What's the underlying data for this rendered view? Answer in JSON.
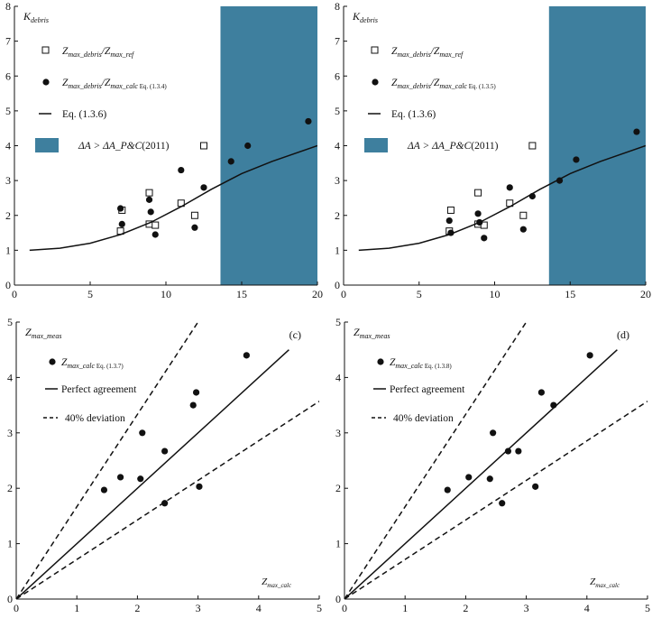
{
  "colors": {
    "region": "#3e7f9e",
    "ink": "#111111"
  },
  "chart_data": [
    {
      "id": "a",
      "type": "scatter",
      "title": "",
      "ylabel": "K",
      "ylabel_sub": "debris",
      "xlabel": "",
      "xlim": [
        0,
        20
      ],
      "ylim": [
        0,
        8
      ],
      "xticks": [
        0,
        5,
        10,
        15,
        20
      ],
      "yticks": [
        0,
        1,
        2,
        3,
        4,
        5,
        6,
        7,
        8
      ],
      "shaded_region": {
        "x_from": 13.6,
        "x_to": 20,
        "label_pre": "ΔA > ΔA_P&C",
        "label_post": "(2011)"
      },
      "series": [
        {
          "name": "Z_max_debris/Z_max_ref",
          "label": "Z",
          "label_sub1": "max_debris",
          "label_mid": "/Z",
          "label_sub2": "max_ref",
          "label_eq": "",
          "marker": "square",
          "points": [
            [
              7.0,
              1.55
            ],
            [
              7.1,
              2.15
            ],
            [
              8.9,
              1.75
            ],
            [
              8.9,
              2.65
            ],
            [
              9.3,
              1.72
            ],
            [
              11.0,
              2.35
            ],
            [
              11.9,
              2.0
            ],
            [
              12.5,
              4.0
            ]
          ]
        },
        {
          "name": "Z_max_debris/Z_max_calc Eq. (1.3.4)",
          "label": "Z",
          "label_sub1": "max_debris",
          "label_mid": "/Z",
          "label_sub2": "max_calc",
          "label_eq": "Eq. (1.3.4)",
          "marker": "circle",
          "points": [
            [
              7.0,
              2.2
            ],
            [
              7.1,
              1.75
            ],
            [
              8.9,
              2.45
            ],
            [
              9.0,
              2.1
            ],
            [
              9.3,
              1.45
            ],
            [
              11.0,
              3.3
            ],
            [
              11.9,
              1.65
            ],
            [
              12.5,
              2.8
            ],
            [
              14.3,
              3.55
            ],
            [
              15.4,
              4.0
            ],
            [
              19.4,
              4.7
            ]
          ]
        },
        {
          "name": "Eq. (1.3.6)",
          "label": "Eq. (1.3.6)",
          "marker": "line",
          "curve": [
            [
              1,
              1.0
            ],
            [
              3,
              1.06
            ],
            [
              5,
              1.2
            ],
            [
              7,
              1.45
            ],
            [
              9,
              1.8
            ],
            [
              11,
              2.25
            ],
            [
              13,
              2.75
            ],
            [
              15,
              3.2
            ],
            [
              17,
              3.55
            ],
            [
              20,
              4.0
            ]
          ]
        }
      ]
    },
    {
      "id": "b",
      "type": "scatter",
      "title": "",
      "ylabel": "K",
      "ylabel_sub": "debris",
      "xlabel": "",
      "xlim": [
        0,
        20
      ],
      "ylim": [
        0,
        8
      ],
      "xticks": [
        0,
        5,
        10,
        15,
        20
      ],
      "yticks": [
        0,
        1,
        2,
        3,
        4,
        5,
        6,
        7,
        8
      ],
      "shaded_region": {
        "x_from": 13.6,
        "x_to": 20,
        "label_pre": "ΔA > ΔA_P&C",
        "label_post": "(2011)"
      },
      "series": [
        {
          "name": "Z_max_debris/Z_max_ref",
          "label": "Z",
          "label_sub1": "max_debris",
          "label_mid": "/Z",
          "label_sub2": "max_ref",
          "label_eq": "",
          "marker": "square",
          "points": [
            [
              7.0,
              1.55
            ],
            [
              7.1,
              2.15
            ],
            [
              8.9,
              1.75
            ],
            [
              8.9,
              2.65
            ],
            [
              9.3,
              1.72
            ],
            [
              11.0,
              2.35
            ],
            [
              11.9,
              2.0
            ],
            [
              12.5,
              4.0
            ]
          ]
        },
        {
          "name": "Z_max_debris/Z_max_calc Eq. (1.3.5)",
          "label": "Z",
          "label_sub1": "max_debris",
          "label_mid": "/Z",
          "label_sub2": "max_calc",
          "label_eq": "Eq. (1.3.5)",
          "marker": "circle",
          "points": [
            [
              7.0,
              1.85
            ],
            [
              7.1,
              1.5
            ],
            [
              8.9,
              2.05
            ],
            [
              9.0,
              1.8
            ],
            [
              9.3,
              1.35
            ],
            [
              11.0,
              2.8
            ],
            [
              11.9,
              1.6
            ],
            [
              12.5,
              2.55
            ],
            [
              14.3,
              3.0
            ],
            [
              15.4,
              3.6
            ],
            [
              19.4,
              4.4
            ]
          ]
        },
        {
          "name": "Eq. (1.3.6)",
          "label": "Eq. (1.3.6)",
          "marker": "line",
          "curve": [
            [
              1,
              1.0
            ],
            [
              3,
              1.06
            ],
            [
              5,
              1.2
            ],
            [
              7,
              1.45
            ],
            [
              9,
              1.8
            ],
            [
              11,
              2.25
            ],
            [
              13,
              2.75
            ],
            [
              15,
              3.2
            ],
            [
              17,
              3.55
            ],
            [
              20,
              4.0
            ]
          ]
        }
      ]
    },
    {
      "id": "c",
      "type": "scatter",
      "panel_label": "(c)",
      "ylabel": "Z",
      "ylabel_sub": "max_meas",
      "xlabel": "Z",
      "xlabel_sub": "max_calc",
      "xlim": [
        0,
        5
      ],
      "ylim": [
        0,
        5
      ],
      "xticks": [
        0,
        1,
        2,
        3,
        4,
        5
      ],
      "yticks": [
        0,
        1,
        2,
        3,
        4,
        5
      ],
      "series": [
        {
          "name": "Z_max_calc Eq. (1.3.7)",
          "label": "Z",
          "label_sub1": "max_calc",
          "label_eq": "Eq. (1.3.7)",
          "marker": "circle",
          "points": [
            [
              1.45,
              1.97
            ],
            [
              1.72,
              2.2
            ],
            [
              2.05,
              2.17
            ],
            [
              2.08,
              3.0
            ],
            [
              2.45,
              2.67
            ],
            [
              2.45,
              1.73
            ],
            [
              2.92,
              3.5
            ],
            [
              2.97,
              3.73
            ],
            [
              3.02,
              2.03
            ],
            [
              3.8,
              4.4
            ]
          ]
        },
        {
          "name": "Perfect agreement",
          "label": "Perfect agreement",
          "marker": "line",
          "slope": 1.0
        },
        {
          "name": "40% deviation",
          "label": "40% deviation",
          "marker": "dash",
          "slopes": [
            1.667,
            0.714
          ]
        }
      ]
    },
    {
      "id": "d",
      "type": "scatter",
      "panel_label": "(d)",
      "ylabel": "Z",
      "ylabel_sub": "max_meas",
      "xlabel": "Z",
      "xlabel_sub": "max_calc",
      "xlim": [
        0,
        5
      ],
      "ylim": [
        0,
        5
      ],
      "xticks": [
        0,
        1,
        2,
        3,
        4,
        5
      ],
      "yticks": [
        0,
        1,
        2,
        3,
        4,
        5
      ],
      "series": [
        {
          "name": "Z_max_calc Eq. (1.3.8)",
          "label": "Z",
          "label_sub1": "max_calc",
          "label_eq": "Eq. (1.3.8)",
          "marker": "circle",
          "points": [
            [
              1.7,
              1.97
            ],
            [
              2.05,
              2.2
            ],
            [
              2.4,
              2.17
            ],
            [
              2.45,
              3.0
            ],
            [
              2.6,
              1.73
            ],
            [
              2.7,
              2.67
            ],
            [
              2.87,
              2.67
            ],
            [
              3.15,
              2.03
            ],
            [
              3.25,
              3.73
            ],
            [
              3.45,
              3.5
            ],
            [
              4.05,
              4.4
            ]
          ]
        },
        {
          "name": "Perfect agreement",
          "label": "Perfect agreement",
          "marker": "line",
          "slope": 1.0
        },
        {
          "name": "40% deviation",
          "label": "40% deviation",
          "marker": "dash",
          "slopes": [
            1.667,
            0.714
          ]
        }
      ]
    }
  ]
}
